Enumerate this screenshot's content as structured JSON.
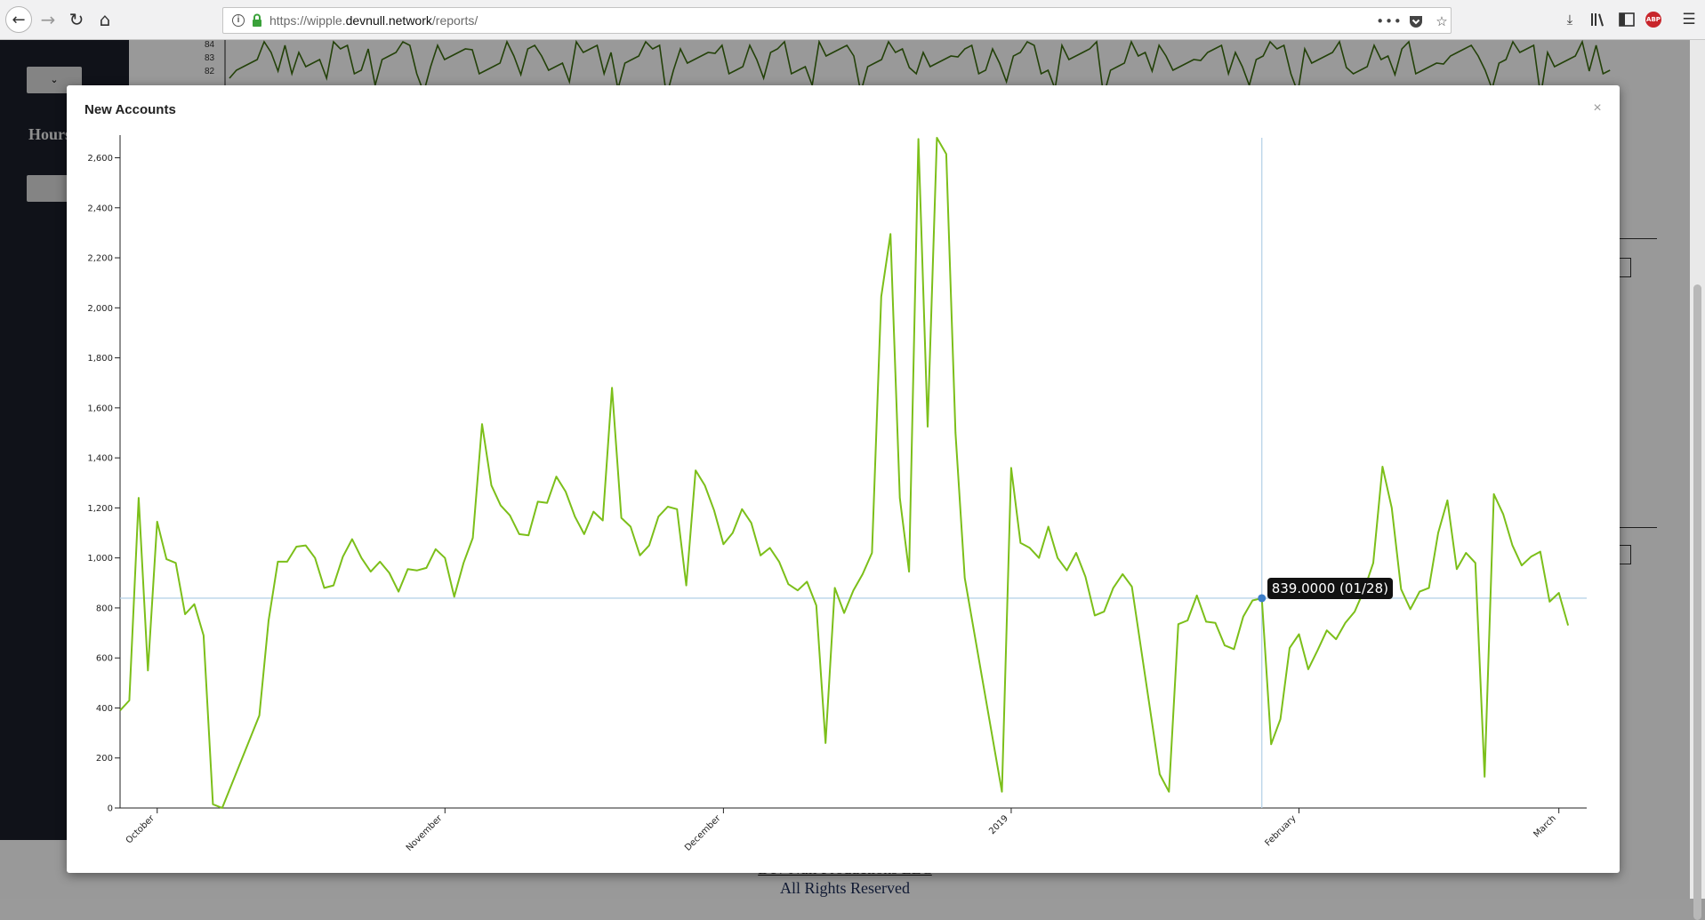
{
  "browser": {
    "url_prefix": "https://wipple.",
    "url_host": "devnull.network",
    "url_path": "/reports/",
    "icons": [
      "back-arrow-icon",
      "forward-arrow-icon",
      "reload-icon",
      "home-icon",
      "info-icon",
      "lock-icon",
      "more-dots-icon",
      "pocket-icon",
      "star-icon",
      "download-icon",
      "library-icon",
      "sidebar-icon",
      "adblock-icon",
      "hamburger-menu-icon"
    ],
    "abp_label": "ABP"
  },
  "background_page": {
    "nav_hours_label": "Hours",
    "bg_chart_ticks": [
      "84",
      "83",
      "82"
    ],
    "footer_line1": "Dev Null Productions LLC",
    "footer_line2": "All Rights Reserved"
  },
  "modal": {
    "title": "New Accounts",
    "close_label": "×"
  },
  "tooltip": {
    "text": "839.0000 (01/28)"
  },
  "colors": {
    "line": "#7cbf1a",
    "crosshair": "#b8d3e8",
    "marker": "#3c7ec9",
    "bg_line": "#3b6d0f"
  },
  "chart_data": {
    "type": "line",
    "title": "New Accounts",
    "xlabel": "",
    "ylabel": "",
    "x_ticks": [
      "October",
      "November",
      "December",
      "2019",
      "February",
      "March"
    ],
    "y_ticks": [
      "0",
      "200",
      "400",
      "600",
      "800",
      "1,000",
      "1,200",
      "1,400",
      "1,600",
      "1,800",
      "2,000",
      "2,200",
      "2,400",
      "2,600"
    ],
    "ylim": [
      0,
      2680
    ],
    "x_range": [
      "2018-09-27",
      "2019-03-04"
    ],
    "grid": false,
    "highlight": {
      "date": "2019-01-28",
      "value": 839
    },
    "series": [
      {
        "points": [
          [
            "2018-09-27",
            390
          ],
          [
            "2018-09-28",
            430
          ],
          [
            "2018-09-29",
            1240
          ],
          [
            "2018-09-30",
            550
          ],
          [
            "2018-10-01",
            1145
          ],
          [
            "2018-10-02",
            995
          ],
          [
            "2018-10-03",
            980
          ],
          [
            "2018-10-04",
            775
          ],
          [
            "2018-10-05",
            815
          ],
          [
            "2018-10-06",
            690
          ],
          [
            "2018-10-07",
            15
          ],
          [
            "2018-10-08",
            0
          ],
          [
            "2018-10-12",
            370
          ],
          [
            "2018-10-13",
            750
          ],
          [
            "2018-10-14",
            985
          ],
          [
            "2018-10-15",
            985
          ],
          [
            "2018-10-16",
            1045
          ],
          [
            "2018-10-17",
            1050
          ],
          [
            "2018-10-18",
            1000
          ],
          [
            "2018-10-19",
            880
          ],
          [
            "2018-10-20",
            890
          ],
          [
            "2018-10-21",
            1005
          ],
          [
            "2018-10-22",
            1075
          ],
          [
            "2018-10-23",
            1000
          ],
          [
            "2018-10-24",
            945
          ],
          [
            "2018-10-25",
            985
          ],
          [
            "2018-10-26",
            940
          ],
          [
            "2018-10-27",
            865
          ],
          [
            "2018-10-28",
            955
          ],
          [
            "2018-10-29",
            950
          ],
          [
            "2018-10-30",
            960
          ],
          [
            "2018-10-31",
            1035
          ],
          [
            "2018-11-01",
            1000
          ],
          [
            "2018-11-02",
            845
          ],
          [
            "2018-11-03",
            980
          ],
          [
            "2018-11-04",
            1080
          ],
          [
            "2018-11-05",
            1535
          ],
          [
            "2018-11-06",
            1290
          ],
          [
            "2018-11-07",
            1210
          ],
          [
            "2018-11-08",
            1170
          ],
          [
            "2018-11-09",
            1095
          ],
          [
            "2018-11-10",
            1090
          ],
          [
            "2018-11-11",
            1225
          ],
          [
            "2018-11-12",
            1220
          ],
          [
            "2018-11-13",
            1325
          ],
          [
            "2018-11-14",
            1265
          ],
          [
            "2018-11-15",
            1165
          ],
          [
            "2018-11-16",
            1095
          ],
          [
            "2018-11-17",
            1185
          ],
          [
            "2018-11-18",
            1150
          ],
          [
            "2018-11-19",
            1680
          ],
          [
            "2018-11-20",
            1160
          ],
          [
            "2018-11-21",
            1125
          ],
          [
            "2018-11-22",
            1010
          ],
          [
            "2018-11-23",
            1050
          ],
          [
            "2018-11-24",
            1165
          ],
          [
            "2018-11-25",
            1205
          ],
          [
            "2018-11-26",
            1195
          ],
          [
            "2018-11-27",
            890
          ],
          [
            "2018-11-28",
            1350
          ],
          [
            "2018-11-29",
            1290
          ],
          [
            "2018-11-30",
            1190
          ],
          [
            "2018-12-01",
            1055
          ],
          [
            "2018-12-02",
            1100
          ],
          [
            "2018-12-03",
            1195
          ],
          [
            "2018-12-04",
            1140
          ],
          [
            "2018-12-05",
            1010
          ],
          [
            "2018-12-06",
            1040
          ],
          [
            "2018-12-07",
            985
          ],
          [
            "2018-12-08",
            895
          ],
          [
            "2018-12-09",
            870
          ],
          [
            "2018-12-10",
            905
          ],
          [
            "2018-12-11",
            810
          ],
          [
            "2018-12-12",
            260
          ],
          [
            "2018-12-13",
            880
          ],
          [
            "2018-12-14",
            780
          ],
          [
            "2018-12-15",
            870
          ],
          [
            "2018-12-16",
            935
          ],
          [
            "2018-12-17",
            1020
          ],
          [
            "2018-12-18",
            2045
          ],
          [
            "2018-12-19",
            2295
          ],
          [
            "2018-12-20",
            1240
          ],
          [
            "2018-12-21",
            945
          ],
          [
            "2018-12-22",
            2675
          ],
          [
            "2018-12-23",
            1525
          ],
          [
            "2018-12-24",
            2680
          ],
          [
            "2018-12-25",
            2615
          ],
          [
            "2018-12-26",
            1500
          ],
          [
            "2018-12-27",
            920
          ],
          [
            "2018-12-31",
            65
          ],
          [
            "2019-01-01",
            1360
          ],
          [
            "2019-01-02",
            1060
          ],
          [
            "2019-01-03",
            1040
          ],
          [
            "2019-01-04",
            1000
          ],
          [
            "2019-01-05",
            1125
          ],
          [
            "2019-01-06",
            1000
          ],
          [
            "2019-01-07",
            950
          ],
          [
            "2019-01-08",
            1020
          ],
          [
            "2019-01-09",
            925
          ],
          [
            "2019-01-10",
            770
          ],
          [
            "2019-01-11",
            785
          ],
          [
            "2019-01-12",
            880
          ],
          [
            "2019-01-13",
            935
          ],
          [
            "2019-01-14",
            885
          ],
          [
            "2019-01-17",
            135
          ],
          [
            "2019-01-18",
            65
          ],
          [
            "2019-01-19",
            735
          ],
          [
            "2019-01-20",
            750
          ],
          [
            "2019-01-21",
            850
          ],
          [
            "2019-01-22",
            745
          ],
          [
            "2019-01-23",
            740
          ],
          [
            "2019-01-24",
            650
          ],
          [
            "2019-01-25",
            635
          ],
          [
            "2019-01-26",
            765
          ],
          [
            "2019-01-27",
            830
          ],
          [
            "2019-01-28",
            839
          ],
          [
            "2019-01-29",
            255
          ],
          [
            "2019-01-30",
            355
          ],
          [
            "2019-01-31",
            640
          ],
          [
            "2019-02-01",
            695
          ],
          [
            "2019-02-02",
            555
          ],
          [
            "2019-02-03",
            630
          ],
          [
            "2019-02-04",
            710
          ],
          [
            "2019-02-05",
            675
          ],
          [
            "2019-02-06",
            740
          ],
          [
            "2019-02-07",
            785
          ],
          [
            "2019-02-08",
            870
          ],
          [
            "2019-02-09",
            980
          ],
          [
            "2019-02-10",
            1365
          ],
          [
            "2019-02-11",
            1200
          ],
          [
            "2019-02-12",
            875
          ],
          [
            "2019-02-13",
            795
          ],
          [
            "2019-02-14",
            865
          ],
          [
            "2019-02-15",
            880
          ],
          [
            "2019-02-16",
            1100
          ],
          [
            "2019-02-17",
            1230
          ],
          [
            "2019-02-18",
            955
          ],
          [
            "2019-02-19",
            1020
          ],
          [
            "2019-02-20",
            980
          ],
          [
            "2019-02-21",
            125
          ],
          [
            "2019-02-22",
            1255
          ],
          [
            "2019-02-23",
            1175
          ],
          [
            "2019-02-24",
            1050
          ],
          [
            "2019-02-25",
            970
          ],
          [
            "2019-02-26",
            1005
          ],
          [
            "2019-02-27",
            1025
          ],
          [
            "2019-02-28",
            825
          ],
          [
            "2019-03-01",
            860
          ],
          [
            "2019-03-02",
            730
          ]
        ]
      }
    ]
  }
}
